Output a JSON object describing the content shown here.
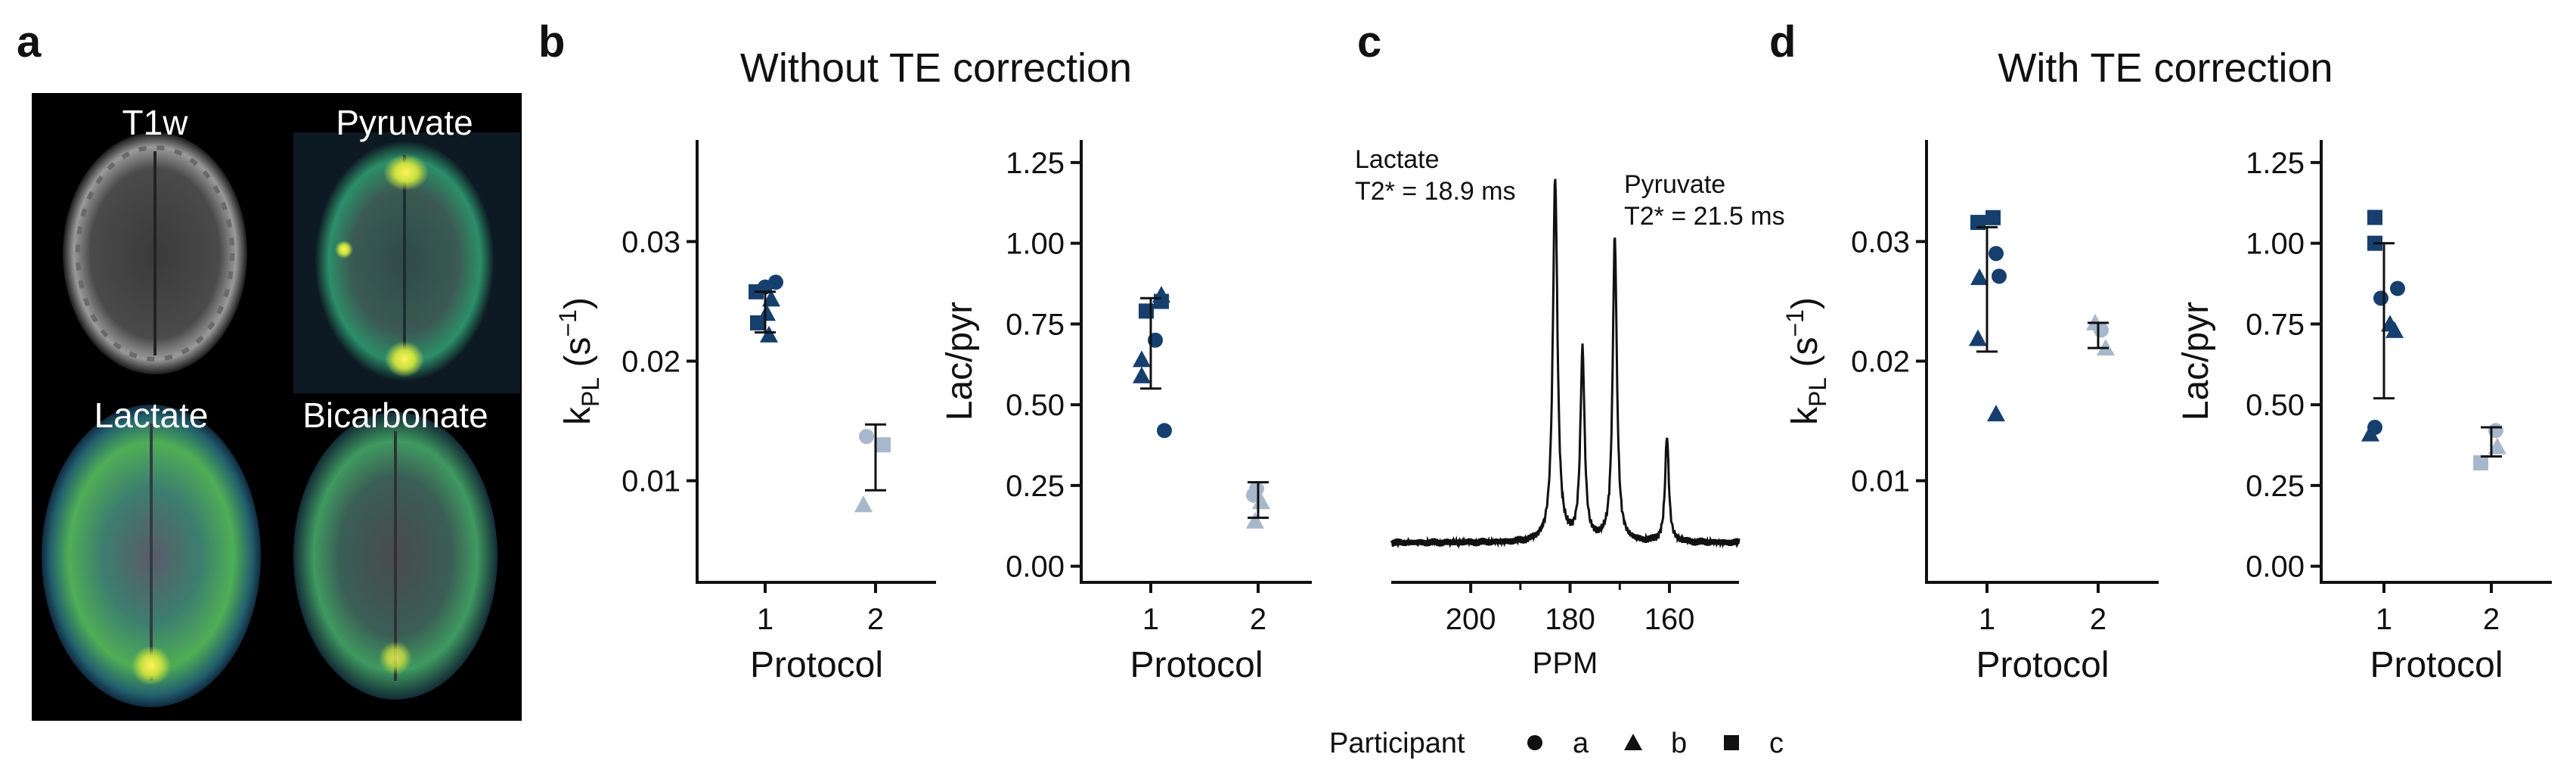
{
  "panels": {
    "a": {
      "label": "a",
      "images": [
        {
          "title": "T1w",
          "kind": "t1w"
        },
        {
          "title": "Pyruvate",
          "kind": "pyruvate"
        },
        {
          "title": "Lactate",
          "kind": "lactate"
        },
        {
          "title": "Bicarbonate",
          "kind": "bicarbonate"
        }
      ]
    },
    "b": {
      "label": "b",
      "title": "Without TE correction"
    },
    "c": {
      "label": "c"
    },
    "d": {
      "label": "d",
      "title": "With TE correction"
    }
  },
  "colors": {
    "protocol1": "#163f6e",
    "protocol2": "#a8b8cc",
    "line": "#111111"
  },
  "legend": {
    "title": "Participant",
    "items": [
      {
        "label": "a",
        "shape": "circle"
      },
      {
        "label": "b",
        "shape": "triangle"
      },
      {
        "label": "c",
        "shape": "square"
      }
    ]
  },
  "chart_data": [
    {
      "id": "b-kpl",
      "panel": "b",
      "type": "scatter",
      "xlabel": "Protocol",
      "ylabel": "k_PL (s^-1)",
      "categories": [
        "1",
        "2"
      ],
      "ylim": [
        0.0015,
        0.0385
      ],
      "yticks": [
        0.01,
        0.02,
        0.03
      ],
      "ytick_labels": [
        "0.01",
        "0.02",
        "0.03"
      ],
      "points": [
        {
          "x": 1,
          "jitter": -0.12,
          "y": 0.0258,
          "participant": "c"
        },
        {
          "x": 1,
          "jitter": -0.1,
          "y": 0.0232,
          "participant": "c"
        },
        {
          "x": 1,
          "jitter": 0.0,
          "y": 0.0262,
          "participant": "a"
        },
        {
          "x": 1,
          "jitter": 0.14,
          "y": 0.0266,
          "participant": "a"
        },
        {
          "x": 1,
          "jitter": 0.08,
          "y": 0.0252,
          "participant": "b"
        },
        {
          "x": 1,
          "jitter": 0.02,
          "y": 0.024,
          "participant": "b"
        },
        {
          "x": 1,
          "jitter": 0.05,
          "y": 0.0222,
          "participant": "b"
        },
        {
          "x": 2,
          "jitter": -0.12,
          "y": 0.0137,
          "participant": "a"
        },
        {
          "x": 2,
          "jitter": 0.1,
          "y": 0.013,
          "participant": "c"
        },
        {
          "x": 2,
          "jitter": -0.16,
          "y": 0.008,
          "participant": "b"
        }
      ],
      "errorbars": [
        {
          "x": 1,
          "low": 0.0224,
          "high": 0.0258
        },
        {
          "x": 2,
          "low": 0.0092,
          "high": 0.0147
        }
      ]
    },
    {
      "id": "b-lacpyr",
      "panel": "b",
      "type": "scatter",
      "xlabel": "Protocol",
      "ylabel": "Lac/pyr",
      "categories": [
        "1",
        "2"
      ],
      "ylim": [
        -0.05,
        1.32
      ],
      "yticks": [
        0,
        0.25,
        0.5,
        0.75,
        1.0,
        1.25
      ],
      "ytick_labels": [
        "0.00",
        "0.25",
        "0.50",
        "0.75",
        "1.00",
        "1.25"
      ],
      "points": [
        {
          "x": 1,
          "jitter": -0.06,
          "y": 0.79,
          "participant": "c"
        },
        {
          "x": 1,
          "jitter": 0.14,
          "y": 0.84,
          "participant": "b"
        },
        {
          "x": 1,
          "jitter": 0.14,
          "y": 0.82,
          "participant": "c"
        },
        {
          "x": 1,
          "jitter": 0.06,
          "y": 0.7,
          "participant": "a"
        },
        {
          "x": 1,
          "jitter": -0.12,
          "y": 0.64,
          "participant": "b"
        },
        {
          "x": 1,
          "jitter": -0.12,
          "y": 0.59,
          "participant": "b"
        },
        {
          "x": 1,
          "jitter": 0.18,
          "y": 0.42,
          "participant": "a"
        },
        {
          "x": 2,
          "jitter": -0.06,
          "y": 0.22,
          "participant": "a"
        },
        {
          "x": 2,
          "jitter": 0.04,
          "y": 0.2,
          "participant": "b"
        },
        {
          "x": 2,
          "jitter": -0.04,
          "y": 0.14,
          "participant": "b"
        },
        {
          "x": 2,
          "jitter": -0.02,
          "y": 0.24,
          "participant": "a"
        }
      ],
      "errorbars": [
        {
          "x": 1,
          "low": 0.55,
          "high": 0.83
        },
        {
          "x": 2,
          "low": 0.15,
          "high": 0.26
        }
      ]
    },
    {
      "id": "c-spectrum",
      "panel": "c",
      "type": "line",
      "xlabel": "PPM",
      "xlim": [
        216,
        146
      ],
      "xticks": [
        200,
        180,
        160
      ],
      "xtick_labels": [
        "200",
        "180",
        "160"
      ],
      "ylim": [
        0,
        1
      ],
      "peaks": [
        {
          "ppm": 183,
          "height": 0.86,
          "width": 0.55
        },
        {
          "ppm": 177.5,
          "height": 0.45,
          "width": 0.5
        },
        {
          "ppm": 171,
          "height": 0.72,
          "width": 0.5
        },
        {
          "ppm": 160.5,
          "height": 0.25,
          "width": 0.45
        }
      ],
      "baseline": 0.04,
      "annotations": [
        {
          "lines": [
            "Lactate",
            "T2* = 18.9 ms"
          ]
        },
        {
          "lines": [
            "Pyruvate",
            "T2* = 21.5 ms"
          ]
        }
      ]
    },
    {
      "id": "d-kpl",
      "panel": "d",
      "type": "scatter",
      "xlabel": "Protocol",
      "ylabel": "k_PL (s^-1)",
      "categories": [
        "1",
        "2"
      ],
      "ylim": [
        0.0015,
        0.0385
      ],
      "yticks": [
        0.01,
        0.02,
        0.03
      ],
      "ytick_labels": [
        "0.01",
        "0.02",
        "0.03"
      ],
      "points": [
        {
          "x": 1,
          "jitter": -0.12,
          "y": 0.0316,
          "participant": "c"
        },
        {
          "x": 1,
          "jitter": 0.08,
          "y": 0.032,
          "participant": "c"
        },
        {
          "x": 1,
          "jitter": 0.12,
          "y": 0.029,
          "participant": "a"
        },
        {
          "x": 1,
          "jitter": 0.16,
          "y": 0.0271,
          "participant": "a"
        },
        {
          "x": 1,
          "jitter": -0.1,
          "y": 0.027,
          "participant": "b"
        },
        {
          "x": 1,
          "jitter": -0.12,
          "y": 0.0219,
          "participant": "b"
        },
        {
          "x": 1,
          "jitter": 0.12,
          "y": 0.0156,
          "participant": "b"
        },
        {
          "x": 2,
          "jitter": -0.04,
          "y": 0.0232,
          "participant": "b"
        },
        {
          "x": 2,
          "jitter": 0.04,
          "y": 0.0226,
          "participant": "a"
        },
        {
          "x": 2,
          "jitter": 0.1,
          "y": 0.0211,
          "participant": "b"
        }
      ],
      "errorbars": [
        {
          "x": 1,
          "low": 0.0208,
          "high": 0.0312
        },
        {
          "x": 2,
          "low": 0.0211,
          "high": 0.0232
        }
      ]
    },
    {
      "id": "d-lacpyr",
      "panel": "d",
      "type": "scatter",
      "xlabel": "Protocol",
      "ylabel": "Lac/pyr",
      "categories": [
        "1",
        "2"
      ],
      "ylim": [
        -0.05,
        1.32
      ],
      "yticks": [
        0,
        0.25,
        0.5,
        0.75,
        1.0,
        1.25
      ],
      "ytick_labels": [
        "0.00",
        "0.25",
        "0.50",
        "0.75",
        "1.00",
        "1.25"
      ],
      "points": [
        {
          "x": 1,
          "jitter": -0.12,
          "y": 1.08,
          "participant": "c"
        },
        {
          "x": 1,
          "jitter": -0.12,
          "y": 1.0,
          "participant": "c"
        },
        {
          "x": 1,
          "jitter": 0.18,
          "y": 0.86,
          "participant": "a"
        },
        {
          "x": 1,
          "jitter": -0.04,
          "y": 0.83,
          "participant": "a"
        },
        {
          "x": 1,
          "jitter": 0.08,
          "y": 0.75,
          "participant": "b"
        },
        {
          "x": 1,
          "jitter": 0.14,
          "y": 0.73,
          "participant": "b"
        },
        {
          "x": 1,
          "jitter": -0.12,
          "y": 0.43,
          "participant": "a"
        },
        {
          "x": 1,
          "jitter": -0.18,
          "y": 0.41,
          "participant": "b"
        },
        {
          "x": 2,
          "jitter": -0.14,
          "y": 0.32,
          "participant": "c"
        },
        {
          "x": 2,
          "jitter": 0.06,
          "y": 0.42,
          "participant": "a"
        },
        {
          "x": 2,
          "jitter": 0.08,
          "y": 0.37,
          "participant": "b"
        }
      ],
      "errorbars": [
        {
          "x": 1,
          "low": 0.52,
          "high": 1.0
        },
        {
          "x": 2,
          "low": 0.34,
          "high": 0.43
        }
      ]
    }
  ]
}
